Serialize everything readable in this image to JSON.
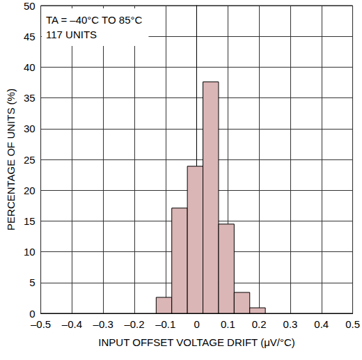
{
  "chart_data": {
    "type": "histogram",
    "annotations": [
      "TA = –40°C TO 85°C",
      "117 UNITS"
    ],
    "x_label": "INPUT OFFSET VOLTAGE DRIFT (μV/°C)",
    "y_label": "PERCENTAGE OF UNITS (%)",
    "bins": [
      -0.13,
      -0.08,
      -0.03,
      0.02,
      0.07,
      0.12,
      0.17,
      0.22
    ],
    "values": [
      2.6,
      17.1,
      23.9,
      37.6,
      14.5,
      3.4,
      0.9
    ],
    "color": "#dbb6b6",
    "xlim": [
      -0.5,
      0.5
    ],
    "xticks": [
      {
        "value": -0.5,
        "label": "–0.5"
      },
      {
        "value": -0.4,
        "label": "–0.4"
      },
      {
        "value": -0.3,
        "label": "–0.3"
      },
      {
        "value": -0.2,
        "label": "–0.2"
      },
      {
        "value": -0.1,
        "label": "–0.1"
      },
      0,
      0.1,
      0.2,
      0.3,
      0.4,
      0.5
    ],
    "ylim": [
      0,
      50
    ],
    "yticks": [
      0,
      5,
      10,
      15,
      20,
      25,
      30,
      35,
      40,
      45,
      50
    ],
    "grid": true
  }
}
